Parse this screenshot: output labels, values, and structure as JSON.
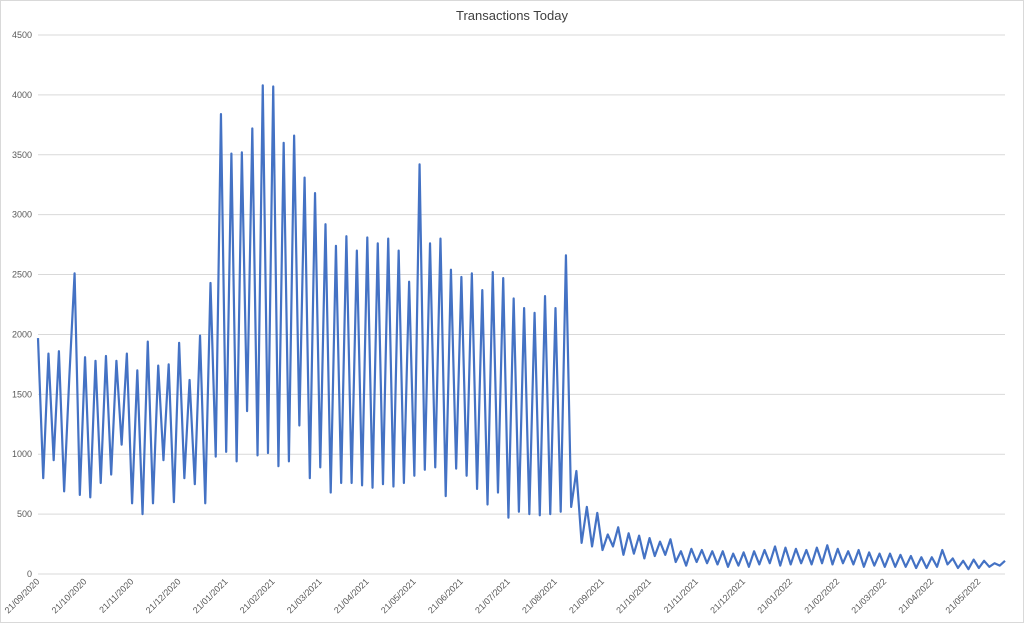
{
  "chart_data": {
    "type": "line",
    "title": "Transactions Today",
    "categories": [
      "21/09/2020",
      null,
      null,
      null,
      null,
      null,
      null,
      null,
      null,
      "21/10/2020",
      null,
      null,
      null,
      null,
      null,
      null,
      null,
      null,
      "21/11/2020",
      null,
      null,
      null,
      null,
      null,
      null,
      null,
      null,
      "21/12/2020",
      null,
      null,
      null,
      null,
      null,
      null,
      null,
      null,
      "21/01/2021",
      null,
      null,
      null,
      null,
      null,
      null,
      null,
      null,
      "21/02/2021",
      null,
      null,
      null,
      null,
      null,
      null,
      null,
      null,
      "21/03/2021",
      null,
      null,
      null,
      null,
      null,
      null,
      null,
      null,
      "21/04/2021",
      null,
      null,
      null,
      null,
      null,
      null,
      null,
      null,
      "21/05/2021",
      null,
      null,
      null,
      null,
      null,
      null,
      null,
      null,
      "21/06/2021",
      null,
      null,
      null,
      null,
      null,
      null,
      null,
      null,
      "21/07/2021",
      null,
      null,
      null,
      null,
      null,
      null,
      null,
      null,
      "21/08/2021",
      null,
      null,
      null,
      null,
      null,
      null,
      null,
      null,
      "21/09/2021",
      null,
      null,
      null,
      null,
      null,
      null,
      null,
      null,
      "21/10/2021",
      null,
      null,
      null,
      null,
      null,
      null,
      null,
      null,
      "21/11/2021",
      null,
      null,
      null,
      null,
      null,
      null,
      null,
      null,
      "21/12/2021",
      null,
      null,
      null,
      null,
      null,
      null,
      null,
      null,
      "21/01/2022",
      null,
      null,
      null,
      null,
      null,
      null,
      null,
      null,
      "21/02/2022",
      null,
      null,
      null,
      null,
      null,
      null,
      null,
      null,
      "21/03/2022",
      null,
      null,
      null,
      null,
      null,
      null,
      null,
      null,
      "21/04/2022",
      null,
      null,
      null,
      null,
      null,
      null,
      null,
      null,
      "21/05/2022",
      null,
      null,
      null,
      null,
      null
    ],
    "values": [
      1970,
      800,
      1840,
      950,
      1860,
      690,
      1650,
      2510,
      660,
      1810,
      640,
      1780,
      760,
      1820,
      830,
      1780,
      1080,
      1840,
      590,
      1700,
      500,
      1940,
      590,
      1740,
      950,
      1750,
      600,
      1930,
      800,
      1620,
      750,
      1990,
      590,
      2430,
      980,
      3840,
      1020,
      3510,
      940,
      3520,
      1360,
      3720,
      990,
      4080,
      1010,
      4070,
      900,
      3600,
      940,
      3660,
      1240,
      3310,
      800,
      3180,
      890,
      2920,
      680,
      2740,
      760,
      2820,
      760,
      2700,
      740,
      2810,
      720,
      2760,
      750,
      2800,
      730,
      2700,
      760,
      2440,
      820,
      3420,
      870,
      2760,
      890,
      2800,
      650,
      2540,
      880,
      2480,
      820,
      2510,
      710,
      2370,
      580,
      2520,
      680,
      2470,
      470,
      2300,
      520,
      2220,
      500,
      2180,
      490,
      2320,
      500,
      2220,
      520,
      2660,
      560,
      860,
      260,
      560,
      230,
      510,
      200,
      330,
      230,
      390,
      160,
      340,
      170,
      320,
      130,
      300,
      150,
      270,
      160,
      290,
      100,
      190,
      70,
      210,
      100,
      200,
      90,
      190,
      80,
      190,
      60,
      170,
      70,
      180,
      60,
      190,
      80,
      200,
      90,
      230,
      70,
      220,
      80,
      210,
      90,
      200,
      80,
      220,
      90,
      240,
      80,
      210,
      90,
      190,
      80,
      200,
      60,
      180,
      70,
      170,
      60,
      170,
      60,
      160,
      60,
      150,
      50,
      140,
      50,
      140,
      60,
      200,
      80,
      130,
      50,
      110,
      40,
      120,
      50,
      110,
      60,
      90,
      70,
      110
    ],
    "color": "#4472c4",
    "ylim": [
      0,
      4500
    ],
    "yticks": [
      0,
      500,
      1000,
      1500,
      2000,
      2500,
      3000,
      3500,
      4000,
      4500
    ],
    "grid": true
  }
}
